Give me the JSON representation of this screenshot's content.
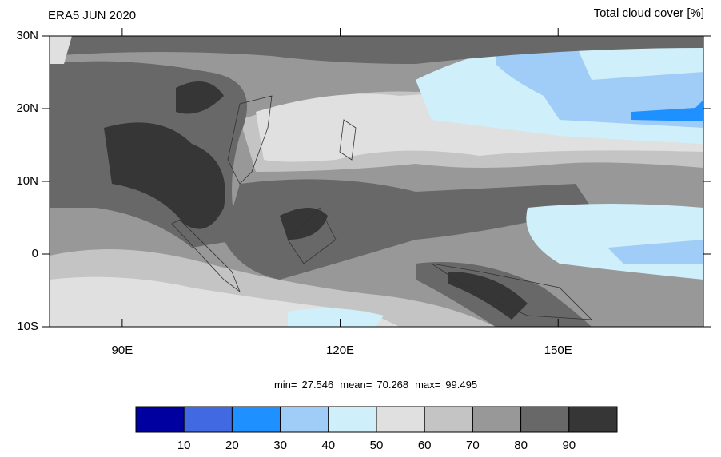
{
  "header": {
    "left_title": "ERA5 JUN 2020",
    "right_title": "Total cloud cover [%]"
  },
  "map": {
    "xlim": [
      80,
      170
    ],
    "ylim": [
      -10,
      30
    ],
    "xticks": [
      {
        "value": 90,
        "label": "90E"
      },
      {
        "value": 120,
        "label": "120E"
      },
      {
        "value": 150,
        "label": "150E"
      }
    ],
    "yticks": [
      {
        "value": 30,
        "label": "30N"
      },
      {
        "value": 20,
        "label": "20N"
      },
      {
        "value": 10,
        "label": "10N"
      },
      0,
      {
        "value": -10,
        "label": "10S"
      }
    ]
  },
  "stats": [
    {
      "label": "min=",
      "value": 27.546
    },
    {
      "label": "mean=",
      "value": 70.268
    },
    {
      "label": "max=",
      "value": 99.495
    }
  ],
  "colorbar": {
    "levels": [
      10,
      20,
      30,
      40,
      50,
      60,
      70,
      80,
      90
    ],
    "colors": [
      "#0000a0",
      "#4169e1",
      "#1e90ff",
      "#9fcdf7",
      "#cff0fb",
      "#e0e0e0",
      "#c4c4c4",
      "#989898",
      "#686868",
      "#363636"
    ]
  }
}
